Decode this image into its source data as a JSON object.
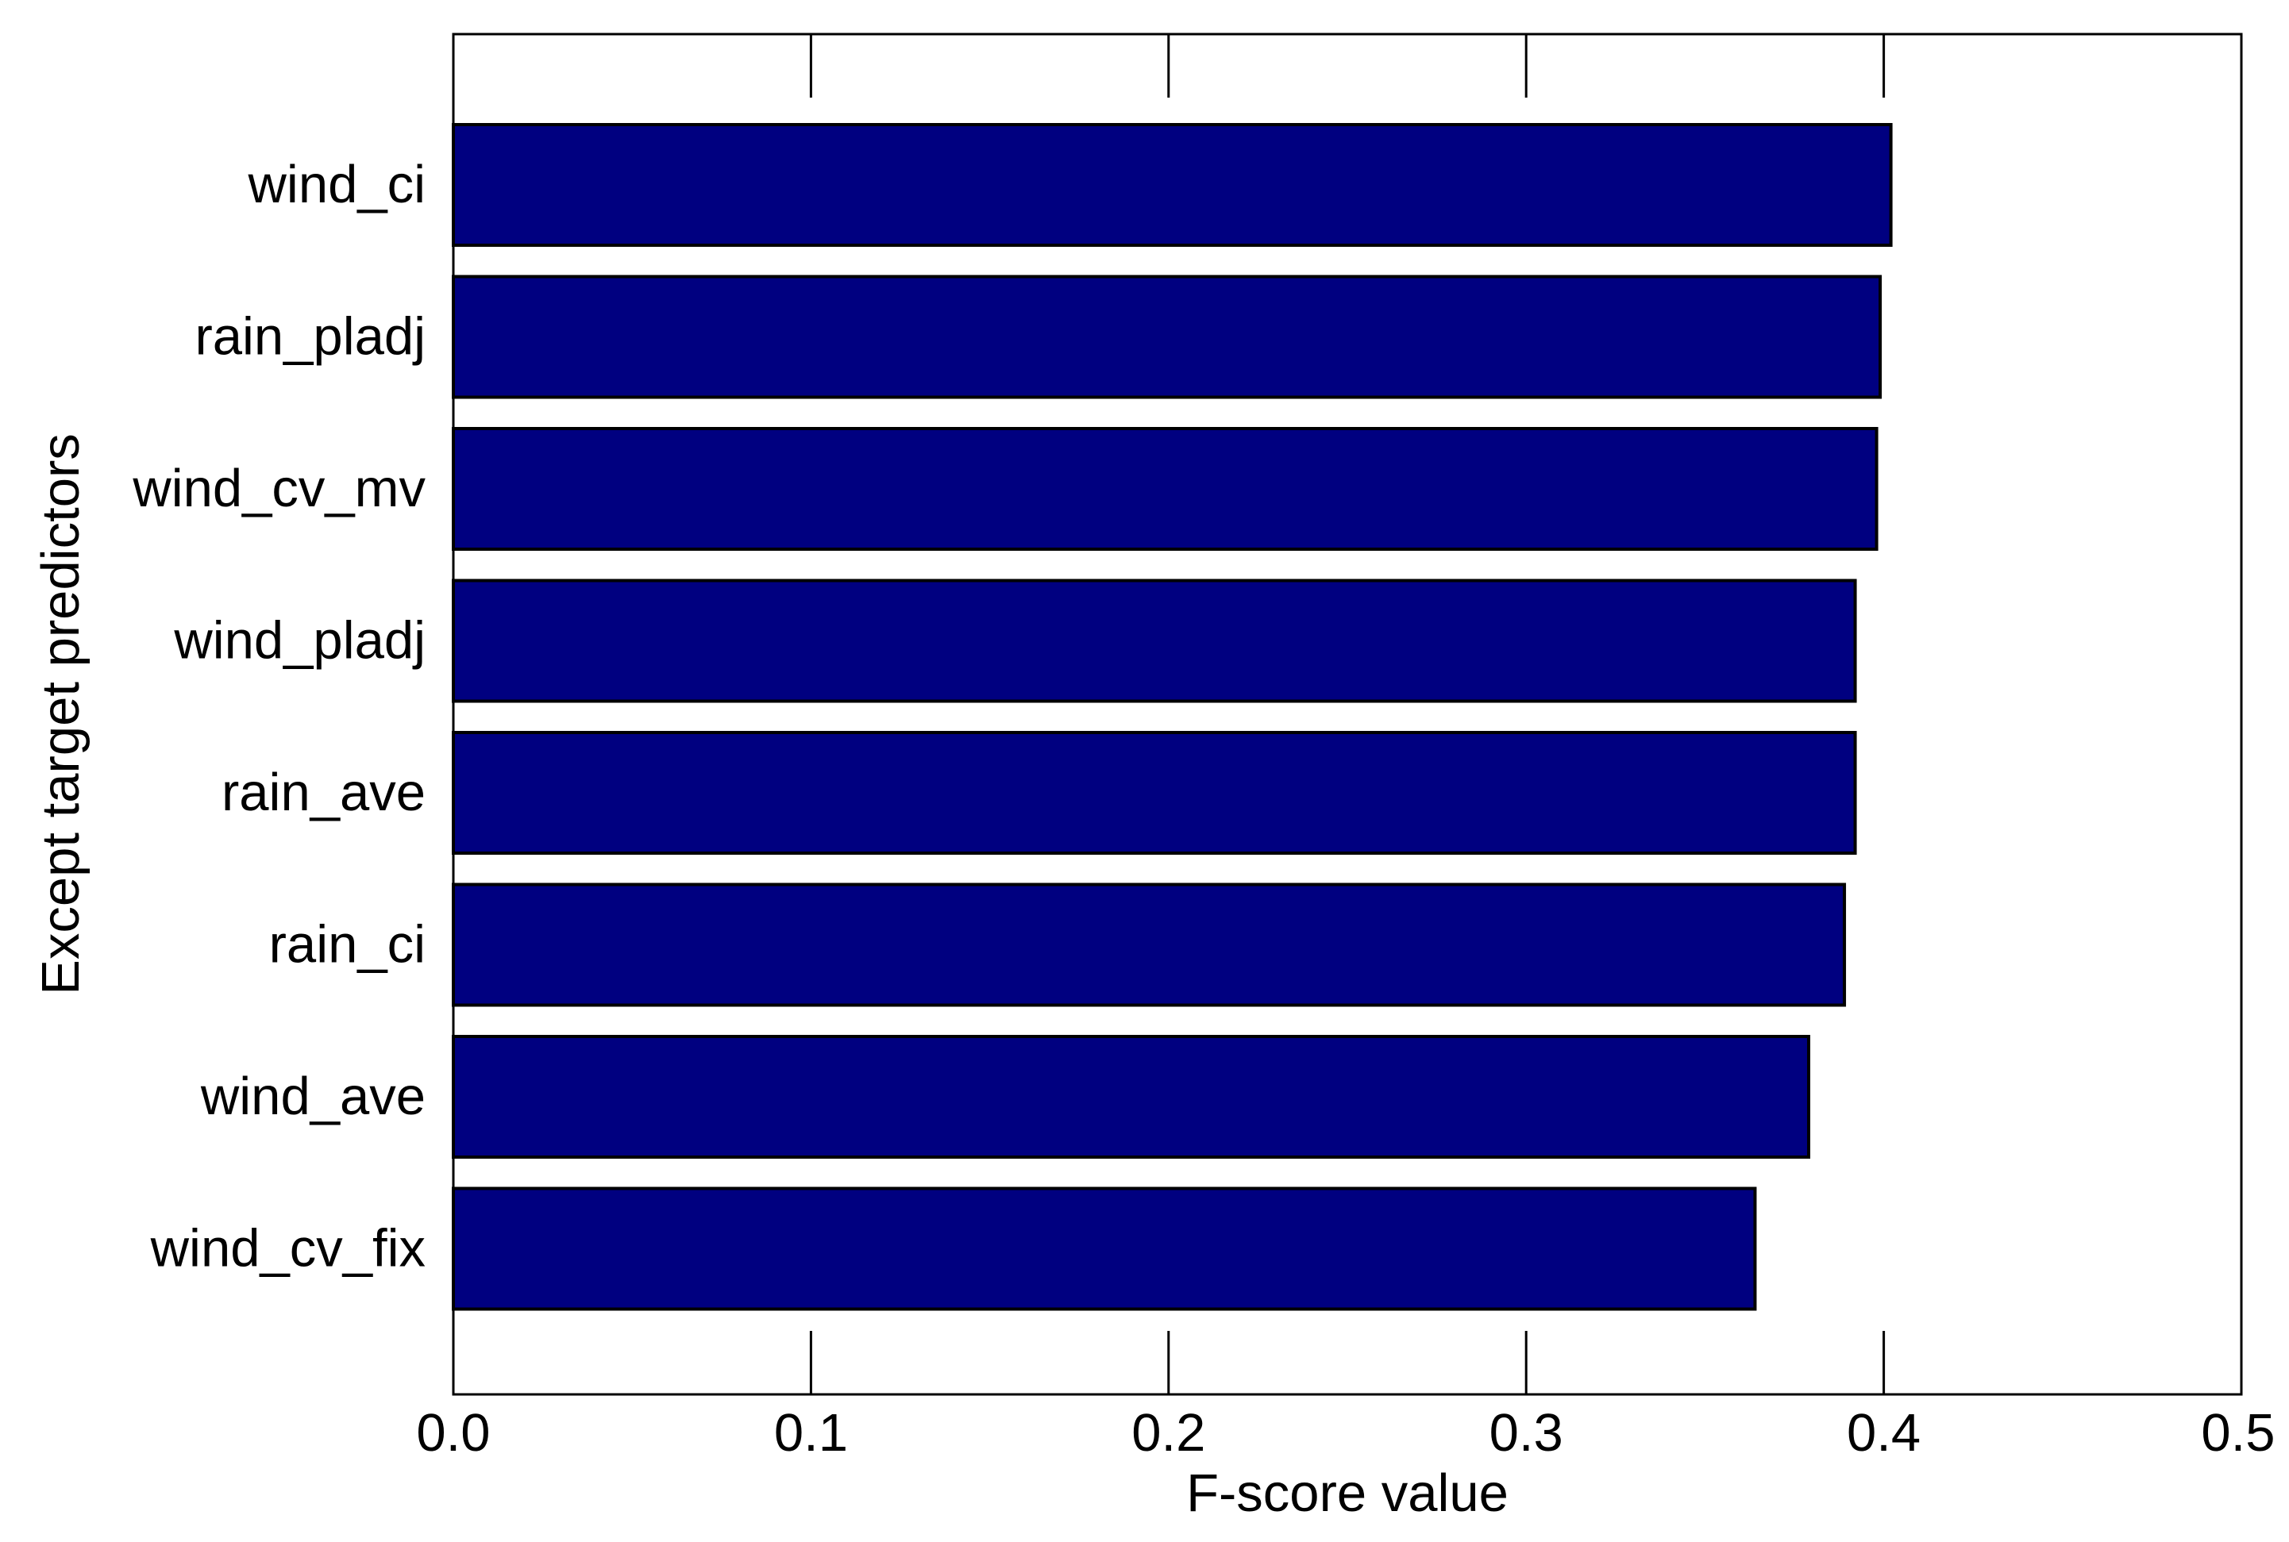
{
  "chart_data": {
    "type": "bar",
    "orientation": "horizontal",
    "xlabel": "F-score value",
    "ylabel": "Except target predictors",
    "xlim": [
      0.0,
      0.5
    ],
    "x_ticks": [
      "0.0",
      "0.1",
      "0.2",
      "0.3",
      "0.4",
      "0.5"
    ],
    "x_tick_values": [
      0.0,
      0.1,
      0.2,
      0.3,
      0.4,
      0.5
    ],
    "categories": [
      "wind_ci",
      "rain_pladj",
      "wind_cv_mv",
      "wind_pladj",
      "rain_ave",
      "rain_ci",
      "wind_ave",
      "wind_cv_fix"
    ],
    "values": [
      0.402,
      0.399,
      0.398,
      0.392,
      0.392,
      0.389,
      0.379,
      0.364
    ],
    "bar_color": "#000080",
    "grid": false,
    "legend": "none"
  }
}
